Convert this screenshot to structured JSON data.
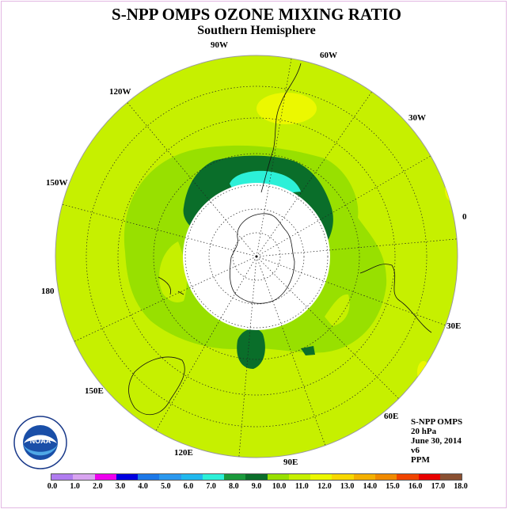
{
  "title": "S-NPP OMPS OZONE MIXING RATIO",
  "subtitle": "Southern Hemisphere",
  "longitude_labels": [
    "90W",
    "60W",
    "30W",
    "0",
    "30E",
    "60E",
    "90E",
    "120E",
    "150E",
    "180",
    "150W",
    "120W"
  ],
  "info": {
    "instrument": "S-NPP OMPS",
    "level": "20 hPa",
    "date": "June 30, 2014",
    "version": "v6",
    "units": "PPM"
  },
  "logo": {
    "text": "NOAA",
    "ring_text": "NATIONAL OCEANIC AND ATMOSPHERIC ADMINISTRATION",
    "ring_text_bottom": "U.S. DEPARTMENT OF COMMERCE"
  },
  "colorbar": {
    "labels": [
      "0.0",
      "1.0",
      "2.0",
      "3.0",
      "4.0",
      "5.0",
      "6.0",
      "7.0",
      "8.0",
      "9.0",
      "10.0",
      "11.0",
      "12.0",
      "13.0",
      "14.0",
      "15.0",
      "16.0",
      "17.0",
      "18.0"
    ],
    "colors": [
      "#b07cf0",
      "#d8a4f0",
      "#ee00ee",
      "#0000e0",
      "#1c78e8",
      "#2a98ee",
      "#20b8ee",
      "#2cf0d8",
      "#1a9a3c",
      "#0a6e2a",
      "#98e000",
      "#c6f000",
      "#ecf800",
      "#f8d800",
      "#f4b000",
      "#f08a00",
      "#f04400",
      "#e80000",
      "#8a5032"
    ]
  },
  "map_colors": {
    "background": "#c6f000",
    "band": "#98e000",
    "core": "#0a6e2a",
    "inner": "#2cf0d8",
    "high": "#ecf800",
    "no_data": "#ffffff"
  }
}
